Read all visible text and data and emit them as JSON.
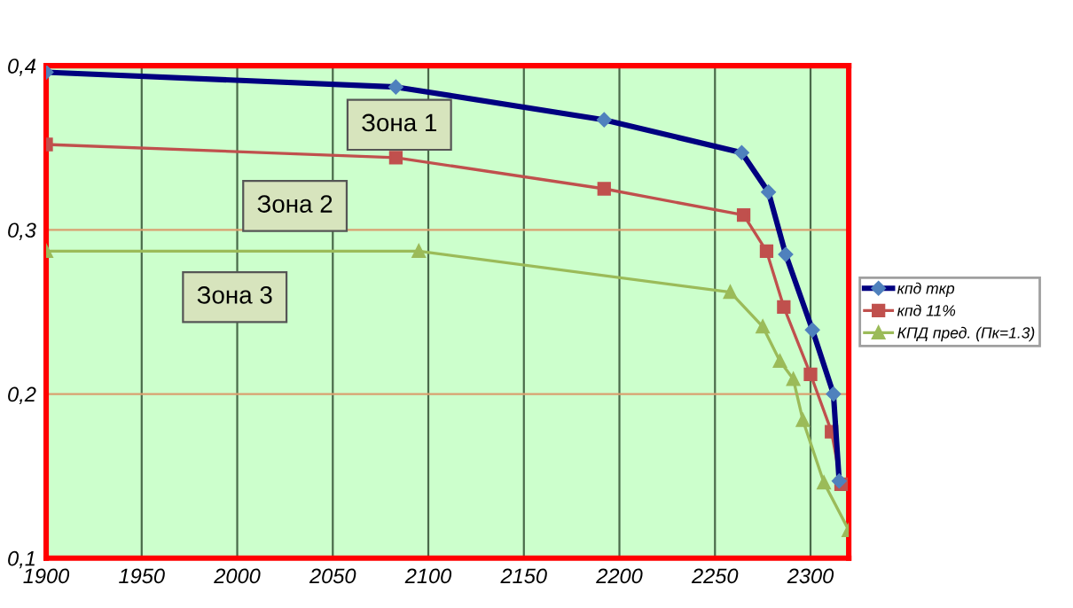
{
  "chart_data": {
    "type": "line",
    "xlim": [
      1900,
      2320
    ],
    "ylim": [
      0.1,
      0.4
    ],
    "xticks": [
      1900,
      1950,
      2000,
      2050,
      2100,
      2150,
      2200,
      2250,
      2300
    ],
    "yticks": [
      {
        "value": 0.1,
        "label": "0,1"
      },
      {
        "value": 0.2,
        "label": "0,2"
      },
      {
        "value": 0.3,
        "label": "0,3"
      },
      {
        "value": 0.4,
        "label": "0,4"
      }
    ],
    "grid": true,
    "legend": "right",
    "annotations": [
      "Зона 1",
      "Зона 2",
      "Зона 3"
    ],
    "series": [
      {
        "name": "кпд ткр",
        "color": "#000080",
        "marker": "diamond",
        "x": [
          1900,
          2083,
          2192,
          2264,
          2278,
          2287,
          2301,
          2312,
          2315
        ],
        "values": [
          0.396,
          0.387,
          0.367,
          0.347,
          0.323,
          0.285,
          0.239,
          0.2,
          0.147
        ]
      },
      {
        "name": "кпд 11%",
        "color": "#c0504d",
        "marker": "square",
        "x": [
          1900,
          2083,
          2192,
          2265,
          2277,
          2286,
          2300,
          2311,
          2316
        ],
        "values": [
          0.352,
          0.344,
          0.325,
          0.309,
          0.287,
          0.253,
          0.212,
          0.177,
          0.145
        ]
      },
      {
        "name": "КПД пред. (Пк=1.3)",
        "color": "#9bbb59",
        "marker": "triangle",
        "x": [
          1900,
          2095,
          2258,
          2275,
          2284,
          2291,
          2296,
          2307,
          2320
        ],
        "values": [
          0.287,
          0.287,
          0.262,
          0.241,
          0.22,
          0.209,
          0.184,
          0.146,
          0.117
        ]
      }
    ]
  }
}
